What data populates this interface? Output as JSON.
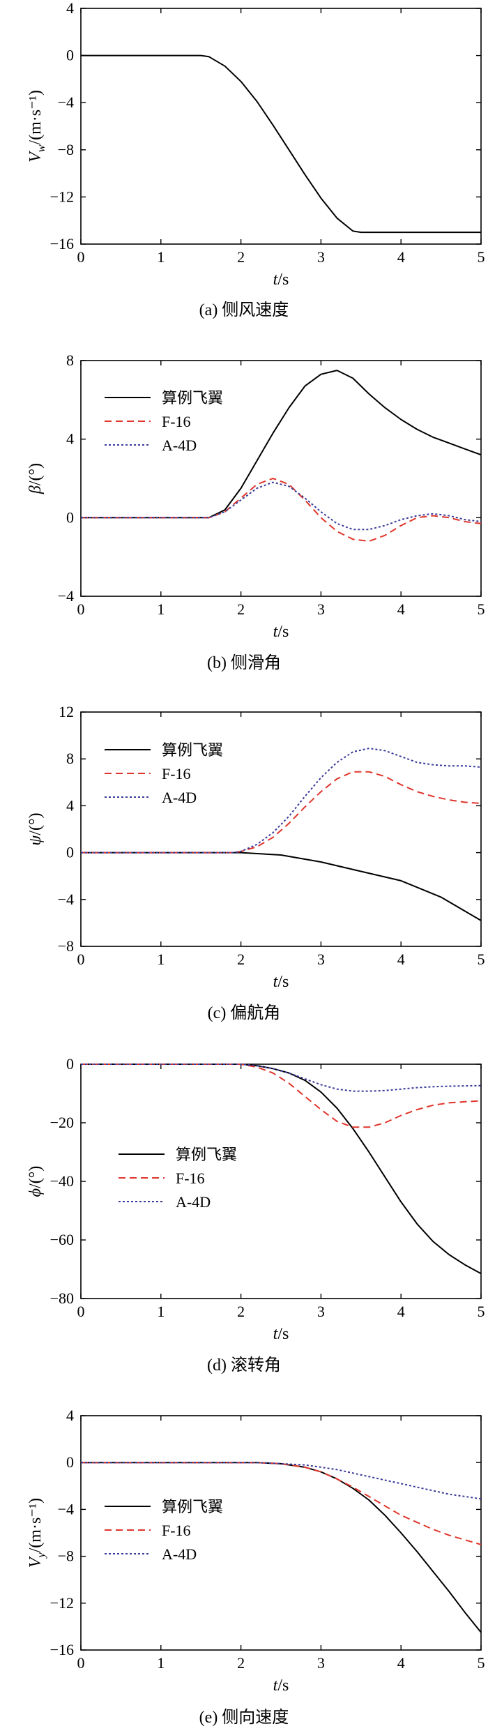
{
  "chart_data": [
    {
      "id": "a",
      "type": "line",
      "caption": "(a) 侧风速度",
      "xlabel": "t/s",
      "ylabel": "V_w/(m·s⁻¹)",
      "xlim": [
        0,
        5
      ],
      "ylim": [
        -16,
        4
      ],
      "xticks": [
        0,
        1,
        2,
        3,
        4,
        5
      ],
      "yticks": [
        4,
        0,
        -4,
        -8,
        -12,
        -16
      ],
      "grid": false,
      "legend": "none",
      "series": [
        {
          "color": "#000000",
          "dash": "solid",
          "x": [
            0,
            1.5,
            1.6,
            1.8,
            2.0,
            2.2,
            2.4,
            2.6,
            2.8,
            3.0,
            3.2,
            3.4,
            3.5,
            5
          ],
          "y": [
            0,
            0,
            -0.1,
            -0.9,
            -2.2,
            -3.9,
            -5.9,
            -8.0,
            -10.1,
            -12.1,
            -13.8,
            -14.9,
            -15,
            -15
          ]
        }
      ]
    },
    {
      "id": "b",
      "type": "line",
      "caption": "(b) 侧滑角",
      "xlabel": "t/s",
      "ylabel": "β/(°)",
      "xlim": [
        0,
        5
      ],
      "ylim": [
        -4,
        8
      ],
      "xticks": [
        0,
        1,
        2,
        3,
        4,
        5
      ],
      "yticks": [
        8,
        4,
        0,
        -4
      ],
      "grid": false,
      "legend": "top-left",
      "series": [
        {
          "name": "算例飞翼",
          "color": "#000000",
          "dash": "solid",
          "x": [
            0,
            1.6,
            1.8,
            2.0,
            2.2,
            2.4,
            2.6,
            2.8,
            3.0,
            3.2,
            3.4,
            3.6,
            3.8,
            4.0,
            4.2,
            4.4,
            4.6,
            4.8,
            5.0
          ],
          "y": [
            0,
            0,
            0.4,
            1.5,
            2.9,
            4.3,
            5.6,
            6.7,
            7.3,
            7.5,
            7.1,
            6.3,
            5.6,
            5.0,
            4.5,
            4.1,
            3.8,
            3.5,
            3.2
          ]
        },
        {
          "name": "F-16",
          "color": "#e0352b",
          "dash": "dashed",
          "x": [
            0,
            1.6,
            1.8,
            2.0,
            2.2,
            2.4,
            2.6,
            2.8,
            3.0,
            3.2,
            3.4,
            3.6,
            3.8,
            4.0,
            4.2,
            4.4,
            4.6,
            4.8,
            5.0
          ],
          "y": [
            0,
            0,
            0.3,
            1.0,
            1.7,
            2.0,
            1.7,
            0.9,
            0.0,
            -0.7,
            -1.1,
            -1.2,
            -0.9,
            -0.4,
            0.0,
            0.1,
            0.0,
            -0.2,
            -0.3
          ]
        },
        {
          "name": "A-4D",
          "color": "#3a3a9a",
          "dash": "dotted",
          "x": [
            0,
            1.6,
            1.8,
            2.0,
            2.2,
            2.4,
            2.6,
            2.8,
            3.0,
            3.2,
            3.4,
            3.6,
            3.8,
            4.0,
            4.2,
            4.4,
            4.6,
            4.8,
            5.0
          ],
          "y": [
            0,
            0,
            0.3,
            0.9,
            1.5,
            1.8,
            1.6,
            1.0,
            0.3,
            -0.3,
            -0.6,
            -0.6,
            -0.4,
            -0.1,
            0.1,
            0.2,
            0.1,
            -0.1,
            -0.2
          ]
        }
      ]
    },
    {
      "id": "c",
      "type": "line",
      "caption": "(c) 偏航角",
      "xlabel": "t/s",
      "ylabel": "ψ/(°)",
      "xlim": [
        0,
        5
      ],
      "ylim": [
        -8,
        12
      ],
      "xticks": [
        0,
        1,
        2,
        3,
        4,
        5
      ],
      "yticks": [
        12,
        8,
        4,
        0,
        -4,
        -8
      ],
      "grid": false,
      "legend": "top-left",
      "series": [
        {
          "name": "算例飞翼",
          "color": "#000000",
          "dash": "solid",
          "x": [
            0,
            2.0,
            2.5,
            3.0,
            3.5,
            4.0,
            4.5,
            5.0
          ],
          "y": [
            0,
            0,
            -0.2,
            -0.8,
            -1.6,
            -2.4,
            -3.8,
            -5.8
          ]
        },
        {
          "name": "F-16",
          "color": "#e0352b",
          "dash": "dashed",
          "x": [
            0,
            1.9,
            2.0,
            2.2,
            2.4,
            2.6,
            2.8,
            3.0,
            3.2,
            3.4,
            3.6,
            3.8,
            4.0,
            4.2,
            4.4,
            4.6,
            4.8,
            5.0
          ],
          "y": [
            0,
            0,
            0.1,
            0.5,
            1.3,
            2.5,
            3.9,
            5.2,
            6.3,
            6.9,
            6.9,
            6.5,
            5.8,
            5.2,
            4.8,
            4.5,
            4.3,
            4.2
          ]
        },
        {
          "name": "A-4D",
          "color": "#3a3a9a",
          "dash": "dotted",
          "x": [
            0,
            1.9,
            2.0,
            2.2,
            2.4,
            2.6,
            2.8,
            3.0,
            3.2,
            3.4,
            3.6,
            3.8,
            4.0,
            4.2,
            4.4,
            4.6,
            4.8,
            5.0
          ],
          "y": [
            0,
            0,
            0.1,
            0.7,
            1.7,
            3.1,
            4.8,
            6.4,
            7.7,
            8.6,
            8.9,
            8.7,
            8.2,
            7.7,
            7.5,
            7.4,
            7.4,
            7.3
          ]
        }
      ]
    },
    {
      "id": "d",
      "type": "line",
      "caption": "(d) 滚转角",
      "xlabel": "t/s",
      "ylabel": "ϕ/(°)",
      "xlim": [
        0,
        5
      ],
      "ylim": [
        -80,
        0
      ],
      "xticks": [
        0,
        1,
        2,
        3,
        4,
        5
      ],
      "yticks": [
        0,
        -20,
        -40,
        -60,
        -80
      ],
      "grid": false,
      "legend": "center-left",
      "series": [
        {
          "name": "算例飞翼",
          "color": "#000000",
          "dash": "solid",
          "x": [
            0,
            2.0,
            2.2,
            2.4,
            2.6,
            2.8,
            3.0,
            3.2,
            3.4,
            3.6,
            3.8,
            4.0,
            4.2,
            4.4,
            4.6,
            4.8,
            5.0
          ],
          "y": [
            0,
            0,
            -0.5,
            -1.5,
            -3.0,
            -5.5,
            -9.5,
            -15.0,
            -22.0,
            -30.0,
            -38.5,
            -47.0,
            -54.5,
            -60.5,
            -65.0,
            -68.5,
            -71.5
          ]
        },
        {
          "name": "F-16",
          "color": "#e0352b",
          "dash": "dashed",
          "x": [
            0,
            2.0,
            2.2,
            2.4,
            2.6,
            2.8,
            3.0,
            3.2,
            3.4,
            3.6,
            3.8,
            4.0,
            4.2,
            4.4,
            4.6,
            4.8,
            5.0
          ],
          "y": [
            0,
            0,
            -1.0,
            -3.0,
            -6.5,
            -11.0,
            -15.5,
            -19.5,
            -21.5,
            -21.5,
            -20.0,
            -17.5,
            -15.5,
            -14.0,
            -13.2,
            -12.8,
            -12.5
          ]
        },
        {
          "name": "A-4D",
          "color": "#3a3a9a",
          "dash": "dotted",
          "x": [
            0,
            2.0,
            2.2,
            2.4,
            2.6,
            2.8,
            3.0,
            3.2,
            3.4,
            3.6,
            3.8,
            4.0,
            4.2,
            4.4,
            4.6,
            4.8,
            5.0
          ],
          "y": [
            0,
            0,
            -0.5,
            -1.5,
            -3.0,
            -5.0,
            -7.0,
            -8.5,
            -9.2,
            -9.2,
            -9.0,
            -8.5,
            -8.0,
            -7.7,
            -7.5,
            -7.4,
            -7.3
          ]
        }
      ]
    },
    {
      "id": "e",
      "type": "line",
      "caption": "(e) 侧向速度",
      "xlabel": "t/s",
      "ylabel": "V_y/(m·s⁻¹)",
      "xlim": [
        0,
        5
      ],
      "ylim": [
        -16,
        4
      ],
      "xticks": [
        0,
        1,
        2,
        3,
        4,
        5
      ],
      "yticks": [
        4,
        0,
        -4,
        -8,
        -12,
        -16
      ],
      "grid": false,
      "legend": "center-left",
      "series": [
        {
          "name": "算例飞翼",
          "color": "#000000",
          "dash": "solid",
          "x": [
            0,
            2.2,
            2.5,
            2.8,
            3.0,
            3.2,
            3.4,
            3.6,
            3.8,
            4.0,
            4.2,
            4.4,
            4.6,
            4.8,
            5.0
          ],
          "y": [
            0,
            0,
            -0.1,
            -0.4,
            -0.8,
            -1.4,
            -2.2,
            -3.2,
            -4.5,
            -6.0,
            -7.6,
            -9.3,
            -11.0,
            -12.8,
            -14.5
          ]
        },
        {
          "name": "F-16",
          "color": "#e0352b",
          "dash": "dashed",
          "x": [
            0,
            2.2,
            2.5,
            2.8,
            3.0,
            3.2,
            3.4,
            3.6,
            3.8,
            4.0,
            4.2,
            4.4,
            4.6,
            4.8,
            5.0
          ],
          "y": [
            0,
            0,
            -0.1,
            -0.4,
            -0.8,
            -1.4,
            -2.1,
            -2.9,
            -3.7,
            -4.5,
            -5.1,
            -5.7,
            -6.2,
            -6.6,
            -7.0
          ]
        },
        {
          "name": "A-4D",
          "color": "#3a3a9a",
          "dash": "dotted",
          "x": [
            0,
            2.2,
            2.5,
            2.8,
            3.0,
            3.2,
            3.4,
            3.6,
            3.8,
            4.0,
            4.2,
            4.4,
            4.6,
            4.8,
            5.0
          ],
          "y": [
            0,
            0,
            -0.1,
            -0.2,
            -0.4,
            -0.6,
            -0.9,
            -1.2,
            -1.5,
            -1.8,
            -2.1,
            -2.4,
            -2.7,
            -2.9,
            -3.1
          ]
        }
      ]
    }
  ]
}
